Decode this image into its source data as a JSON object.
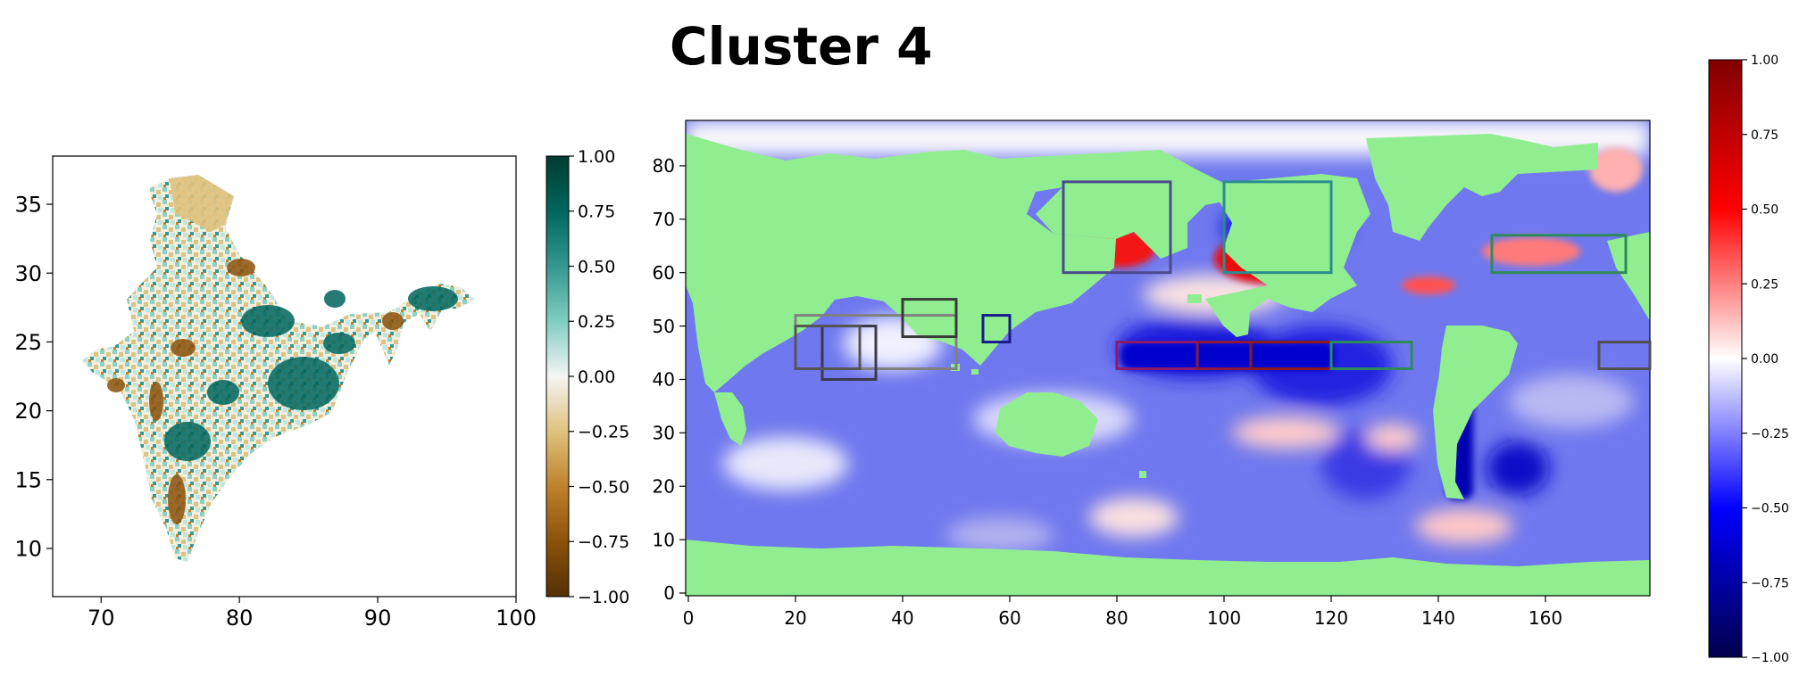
{
  "title": "Cluster 4",
  "chart_data": [
    {
      "type": "heatmap",
      "name": "india-map",
      "xlim": [
        66.5,
        100
      ],
      "ylim": [
        6.5,
        38.5
      ],
      "xticks": [
        "70",
        "80",
        "90",
        "100"
      ],
      "yticks": [
        "10",
        "15",
        "20",
        "25",
        "30",
        "35"
      ],
      "xtick_values": [
        70,
        80,
        90,
        100
      ],
      "ytick_values": [
        10,
        15,
        20,
        25,
        30,
        35
      ],
      "colorbar": {
        "colormap": "BrBG",
        "range": [
          -1,
          1
        ],
        "ticks": [
          "1.00",
          "0.75",
          "0.50",
          "0.25",
          "0.00",
          "−0.25",
          "−0.50",
          "−0.75",
          "−1.00"
        ],
        "tick_values": [
          1,
          0.75,
          0.5,
          0.25,
          0,
          -0.25,
          -0.5,
          -0.75,
          -1
        ]
      }
    },
    {
      "type": "heatmap",
      "name": "global-sst-map",
      "xlim": [
        -0.5,
        179.5
      ],
      "ylim": [
        -0.5,
        88.5
      ],
      "xticks": [
        "0",
        "20",
        "40",
        "60",
        "80",
        "100",
        "120",
        "140",
        "160"
      ],
      "yticks": [
        "0",
        "10",
        "20",
        "30",
        "40",
        "50",
        "60",
        "70",
        "80"
      ],
      "xtick_values": [
        0,
        20,
        40,
        60,
        80,
        100,
        120,
        140,
        160
      ],
      "ytick_values": [
        0,
        10,
        20,
        30,
        40,
        50,
        60,
        70,
        80
      ],
      "land_color": "#90ee90",
      "regions": [
        {
          "x": [
            70,
            90
          ],
          "y": [
            60,
            77
          ],
          "color": "#4a4a8c"
        },
        {
          "x": [
            100,
            120
          ],
          "y": [
            60,
            77
          ],
          "color": "#2a8c8c"
        },
        {
          "x": [
            150,
            175
          ],
          "y": [
            60,
            67
          ],
          "color": "#2e8b57"
        },
        {
          "x": [
            20,
            50
          ],
          "y": [
            42,
            52
          ],
          "color": "#808080"
        },
        {
          "x": [
            25,
            35
          ],
          "y": [
            40,
            50
          ],
          "color": "#3a3a4a"
        },
        {
          "x": [
            20,
            32
          ],
          "y": [
            42,
            50
          ],
          "color": "#555555"
        },
        {
          "x": [
            40,
            50
          ],
          "y": [
            48,
            55
          ],
          "color": "#3a3a3a"
        },
        {
          "x": [
            55,
            60
          ],
          "y": [
            47,
            52
          ],
          "color": "#1a1a8c"
        },
        {
          "x": [
            80,
            95
          ],
          "y": [
            42,
            47
          ],
          "color": "#8b1a6b"
        },
        {
          "x": [
            95,
            105
          ],
          "y": [
            42,
            47
          ],
          "color": "#8b1a3b"
        },
        {
          "x": [
            105,
            120
          ],
          "y": [
            42,
            47
          ],
          "color": "#8b1a1a"
        },
        {
          "x": [
            120,
            135
          ],
          "y": [
            42,
            47
          ],
          "color": "#2e8b57"
        },
        {
          "x": [
            170,
            180
          ],
          "y": [
            42,
            47
          ],
          "color": "#505050"
        }
      ],
      "colorbar": {
        "colormap": "seismic",
        "range": [
          -1,
          1
        ],
        "ticks": [
          "1.00",
          "0.75",
          "0.50",
          "0.25",
          "0.00",
          "−0.25",
          "−0.50",
          "−0.75",
          "−1.00"
        ],
        "tick_values": [
          1,
          0.75,
          0.5,
          0.25,
          0,
          -0.25,
          -0.5,
          -0.75,
          -1
        ]
      }
    }
  ]
}
